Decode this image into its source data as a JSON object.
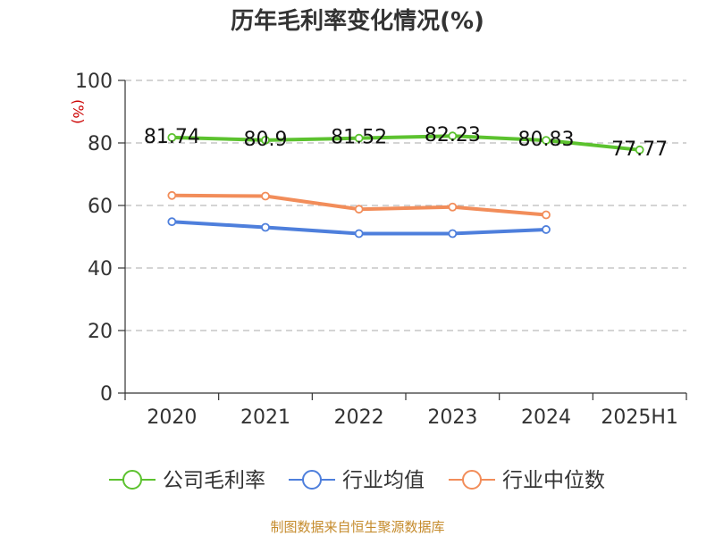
{
  "chart_data": {
    "type": "line",
    "title": "历年毛利率变化情况(%)",
    "xlabel": "",
    "ylabel": "(%)",
    "categories": [
      "2020",
      "2021",
      "2022",
      "2023",
      "2024",
      "2025H1"
    ],
    "ylim": [
      0,
      100
    ],
    "yticks": [
      0,
      20,
      40,
      60,
      80,
      100
    ],
    "grid": true,
    "legend_position": "bottom",
    "series": [
      {
        "name": "公司毛利率",
        "color": "#5cc22f",
        "values": [
          81.74,
          80.9,
          81.52,
          82.23,
          80.83,
          77.77
        ],
        "labels": [
          "81.74",
          "80.9",
          "81.52",
          "82.23",
          "80.83",
          "77.77"
        ],
        "show_labels": true
      },
      {
        "name": "行业均值",
        "color": "#4e7fdc",
        "values": [
          54.8,
          53.0,
          51.0,
          51.0,
          52.3,
          null
        ],
        "show_labels": false
      },
      {
        "name": "行业中位数",
        "color": "#f28d5a",
        "values": [
          63.2,
          63.0,
          58.8,
          59.5,
          57.0,
          null
        ],
        "show_labels": false
      }
    ]
  },
  "source_text": "制图数据来自恒生聚源数据库"
}
